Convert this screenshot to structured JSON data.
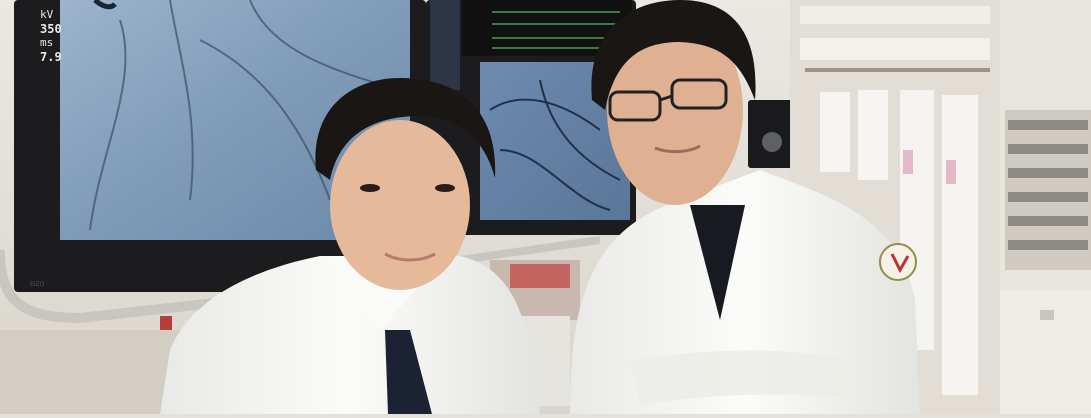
{
  "photo": {
    "monitor_readout": {
      "line1": "kV",
      "line2": "350",
      "line3": "ms",
      "line4": "7.9"
    },
    "colors": {
      "wall": "#e4e1da",
      "monitor_frame": "#1c1c1e",
      "angiogram": "#7f9bb8",
      "lab_coat": "#f4f4f2",
      "hair": "#1a1614",
      "skin": "#e6b99a"
    }
  }
}
